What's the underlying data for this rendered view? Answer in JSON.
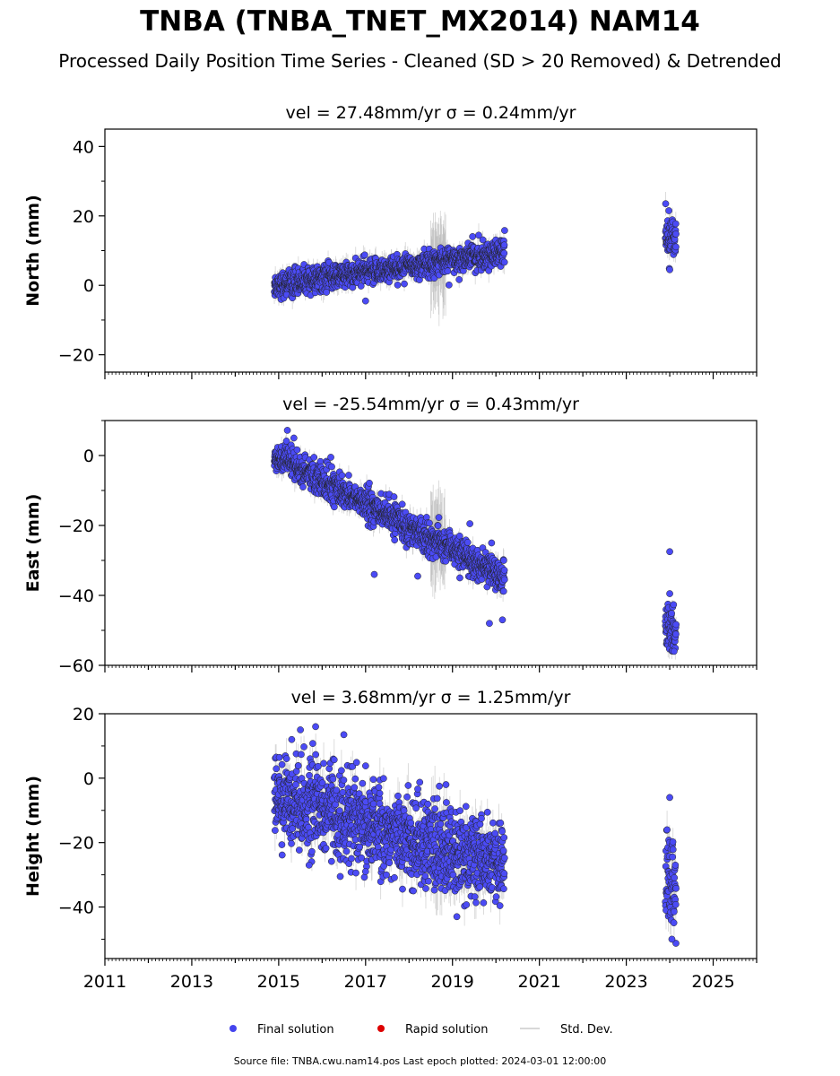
{
  "header": {
    "title": "TNBA (TNBA_TNET_MX2014) NAM14",
    "subtitle": "Processed Daily Position Time Series - Cleaned (SD > 20 Removed) & Detrended"
  },
  "footer": {
    "source": "Source file: TNBA.cwu.nam14.pos  Last epoch plotted: 2024-03-01 12:00:00"
  },
  "chart_data": [
    {
      "type": "scatter",
      "title": "vel = 27.48mm/yr   σ = 0.24mm/yr",
      "ylabel": "North (mm)",
      "xlim": [
        2011,
        2026
      ],
      "ylim": [
        -25,
        45
      ],
      "yticks": [
        -20,
        0,
        20,
        40
      ],
      "ytick_labels": [
        "−20",
        "0",
        "20",
        "40"
      ],
      "trend": {
        "x": [
          2014.9,
          2020.2
        ],
        "y": [
          0.0,
          9.5
        ]
      },
      "segments": [
        {
          "x0": 2014.9,
          "x1": 2020.2,
          "y0": 0.0,
          "y1": 9.5,
          "scatter": 1.8,
          "sd": 2.5
        },
        {
          "x0": 2023.9,
          "x1": 2024.15,
          "y0": 14.0,
          "y1": 13.0,
          "scatter": 2.8,
          "sd": 3.0
        }
      ],
      "noisy_band": {
        "x0": 2018.5,
        "x1": 2018.85,
        "sd": 10
      },
      "outliers": [
        {
          "x": 2017.0,
          "y": -4.5
        },
        {
          "x": 2018.92,
          "y": 0.1
        },
        {
          "x": 2023.98,
          "y": 21.5
        },
        {
          "x": 2024.0,
          "y": 4.5
        },
        {
          "x": 2020.2,
          "y": 15.8
        },
        {
          "x": 2016.1,
          "y": -2.0
        }
      ]
    },
    {
      "type": "scatter",
      "title": "vel = -25.54mm/yr   σ = 0.43mm/yr",
      "ylabel": "East (mm)",
      "xlim": [
        2011,
        2026
      ],
      "ylim": [
        -60,
        10
      ],
      "yticks": [
        -60,
        -40,
        -20,
        0
      ],
      "ytick_labels": [
        "−60",
        "−40",
        "−20",
        "0"
      ],
      "trend": {
        "x": [
          2014.9,
          2020.2
        ],
        "y": [
          0.0,
          -35.0
        ]
      },
      "segments": [
        {
          "x0": 2014.9,
          "x1": 2020.2,
          "y0": 0.0,
          "y1": -35.0,
          "scatter": 2.2,
          "sd": 2.5
        },
        {
          "x0": 2023.9,
          "x1": 2024.15,
          "y0": -49.5,
          "y1": -51.0,
          "scatter": 3.5,
          "sd": 3.0
        }
      ],
      "noisy_band": {
        "x0": 2018.5,
        "x1": 2018.85,
        "sd": 10
      },
      "outliers": [
        {
          "x": 2015.2,
          "y": 7.2
        },
        {
          "x": 2015.35,
          "y": 5.0
        },
        {
          "x": 2016.2,
          "y": -0.5
        },
        {
          "x": 2017.2,
          "y": -34.0
        },
        {
          "x": 2018.2,
          "y": -34.5
        },
        {
          "x": 2019.85,
          "y": -48.0
        },
        {
          "x": 2020.15,
          "y": -47.0
        },
        {
          "x": 2024.0,
          "y": -27.5
        },
        {
          "x": 2024.0,
          "y": -39.5
        },
        {
          "x": 2019.4,
          "y": -19.5
        },
        {
          "x": 2019.9,
          "y": -25.0
        },
        {
          "x": 2024.1,
          "y": -56.0
        }
      ]
    },
    {
      "type": "scatter",
      "title": "vel = 3.68mm/yr   σ = 1.25mm/yr",
      "ylabel": "Height (mm)",
      "xlim": [
        2011,
        2026
      ],
      "ylim": [
        -56,
        20
      ],
      "yticks": [
        -40,
        -20,
        0,
        20
      ],
      "ytick_labels": [
        "−40",
        "−20",
        "0",
        "20"
      ],
      "trend": {
        "x": [
          2014.9,
          2020.2
        ],
        "y": [
          -5.0,
          -28.0
        ]
      },
      "segments": [
        {
          "x0": 2014.9,
          "x1": 2020.2,
          "y0": -5.0,
          "y1": -28.0,
          "scatter": 6.5,
          "sd": 5.0
        },
        {
          "x0": 2023.9,
          "x1": 2024.15,
          "y0": -32.0,
          "y1": -34.0,
          "scatter": 8.0,
          "sd": 6.0
        }
      ],
      "noisy_band": {
        "x0": 2018.5,
        "x1": 2018.85,
        "sd": 9
      },
      "outliers": [
        {
          "x": 2015.85,
          "y": 16.0
        },
        {
          "x": 2015.5,
          "y": 15.0
        },
        {
          "x": 2015.3,
          "y": 12.0
        },
        {
          "x": 2016.5,
          "y": 13.5
        },
        {
          "x": 2017.0,
          "y": -29.0
        },
        {
          "x": 2018.1,
          "y": -35.0
        },
        {
          "x": 2019.1,
          "y": -43.0
        },
        {
          "x": 2018.85,
          "y": -2.0
        },
        {
          "x": 2024.0,
          "y": -6.0
        },
        {
          "x": 2024.05,
          "y": -50.0
        },
        {
          "x": 2015.7,
          "y": -27.0
        }
      ]
    }
  ],
  "xaxis": {
    "ticks": [
      2011,
      2013,
      2015,
      2017,
      2019,
      2021,
      2023,
      2025
    ],
    "tick_labels": [
      "2011",
      "2013",
      "2015",
      "2017",
      "2019",
      "2021",
      "2023",
      "2025"
    ]
  },
  "legend": {
    "placement": "bottom-center",
    "items": [
      {
        "label": "Final solution",
        "color": "#4444ee"
      },
      {
        "label": "Rapid solution",
        "color": "#dd0000"
      },
      {
        "label": "Std. Dev.",
        "color": "#cccccc"
      }
    ]
  },
  "colors": {
    "final": "#4b4bf5",
    "marker_edge": "#222222",
    "stddev": "#b0b0b0"
  }
}
